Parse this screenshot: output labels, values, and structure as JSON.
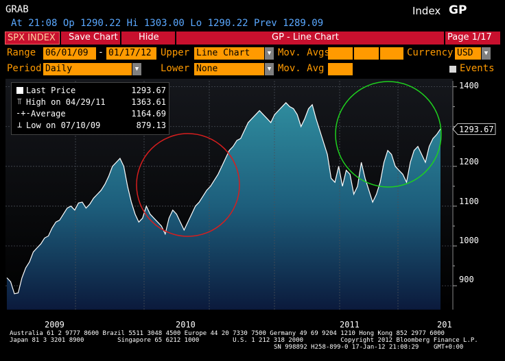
{
  "header": {
    "command": "GRAB",
    "quote_line": "At 21:08 Op 1290.22  Hi 1303.00  Lo 1290.22  Prev 1289.09",
    "index_label": "Index",
    "function_code": "GP"
  },
  "toolbar": {
    "ticker": "SPX INDEX",
    "save_chart": "Save Chart",
    "hide": "Hide",
    "chart_title": "GP - Line Chart",
    "page": "Page 1/17"
  },
  "controls": {
    "range_label": "Range",
    "range_start": "06/01/09",
    "range_sep": "-",
    "range_end": "01/17/12",
    "upper_label": "Upper",
    "upper_value": "Line Chart",
    "mov_avgs_label": "Mov. Avgs",
    "currency_label": "Currency",
    "currency_value": "USD",
    "period_label": "Period",
    "period_value": "Daily",
    "lower_label": "Lower",
    "lower_value": "None",
    "mov_avg_label": "Mov. Avg",
    "events_label": "Events"
  },
  "legend": {
    "last_price_label": "Last Price",
    "last_price_value": "1293.67",
    "high_label": "High on 04/29/11",
    "high_value": "1363.61",
    "average_label": "Average",
    "average_value": "1164.69",
    "low_label": "Low on 07/10/09",
    "low_value": "879.13"
  },
  "chart_data": {
    "type": "area",
    "x_tick_labels": [
      "2009",
      "2010",
      "2011",
      "201"
    ],
    "y_tick_labels": [
      "1400",
      "1300",
      "1200",
      "1100",
      "1000",
      "900"
    ],
    "ylim": [
      840,
      1420
    ],
    "last_price_tag": "1293.67",
    "series": [
      {
        "values": [
          920,
          910,
          880,
          882,
          920,
          945,
          960,
          985,
          995,
          1005,
          1020,
          1025,
          1045,
          1060,
          1065,
          1080,
          1095,
          1100,
          1090,
          1108,
          1110,
          1095,
          1105,
          1120,
          1130,
          1140,
          1155,
          1175,
          1200,
          1210,
          1220,
          1200,
          1150,
          1110,
          1080,
          1060,
          1070,
          1100,
          1080,
          1070,
          1060,
          1050,
          1030,
          1070,
          1090,
          1080,
          1060,
          1040,
          1060,
          1080,
          1100,
          1110,
          1125,
          1140,
          1150,
          1165,
          1180,
          1200,
          1220,
          1240,
          1250,
          1265,
          1270,
          1290,
          1310,
          1320,
          1330,
          1340,
          1330,
          1320,
          1310,
          1330,
          1340,
          1350,
          1360,
          1350,
          1345,
          1330,
          1300,
          1320,
          1345,
          1355,
          1320,
          1290,
          1260,
          1230,
          1170,
          1160,
          1200,
          1150,
          1190,
          1180,
          1130,
          1150,
          1210,
          1170,
          1140,
          1110,
          1130,
          1160,
          1210,
          1240,
          1230,
          1200,
          1190,
          1180,
          1160,
          1210,
          1240,
          1250,
          1230,
          1210,
          1250,
          1270,
          1280,
          1294
        ]
      }
    ],
    "annotations": [
      {
        "color": "#d81e1e",
        "label": "red circle"
      },
      {
        "color": "#1fd11f",
        "label": "green circle"
      }
    ]
  },
  "footer": {
    "line1": "Australia 61 2 9777 8600 Brazil 5511 3048 4500 Europe 44 20 7330 7500 Germany 49 69 9204 1210 Hong Kong 852 2977 6000",
    "line2": "Japan 81 3 3201 8900         Singapore 65 6212 1000         U.S. 1 212 318 2000          Copyright 2012 Bloomberg Finance L.P.",
    "line3": "SN 998892 H258-899-0 17-Jan-12 21:08:29    GMT+0:00"
  }
}
